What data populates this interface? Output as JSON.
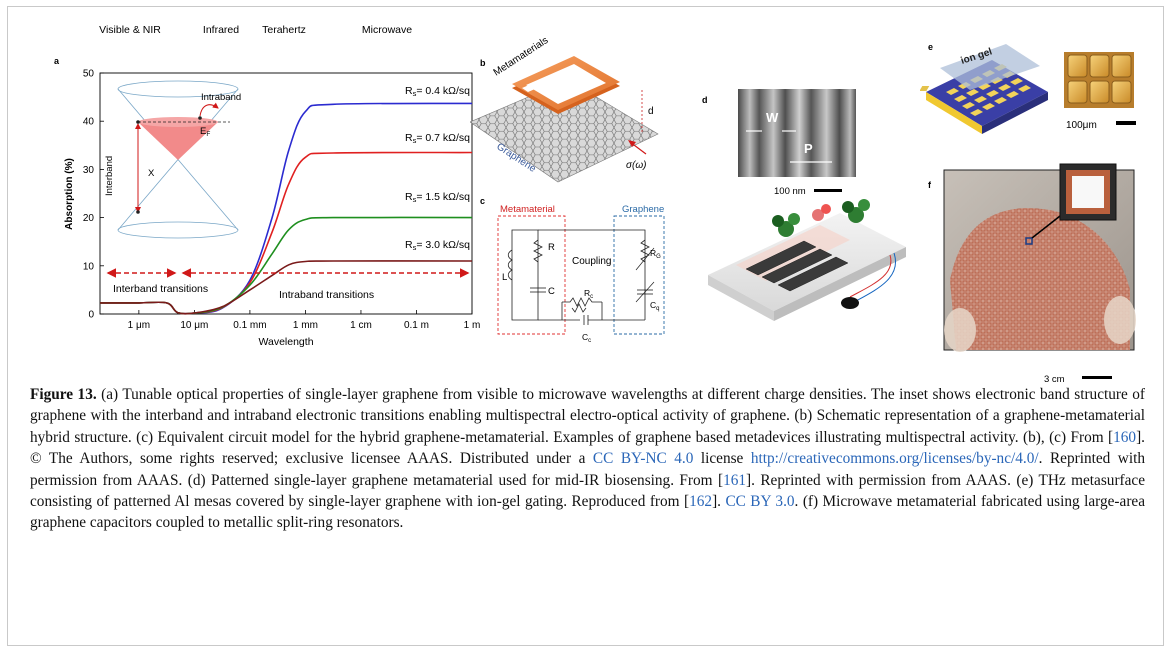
{
  "panel_a": {
    "label": "a",
    "regions": [
      "Visible & NIR",
      "Infrared",
      "Terahertz",
      "Microwave"
    ],
    "y_ticks": [
      "50",
      "40",
      "30",
      "20",
      "10",
      "0"
    ],
    "x_ticks": [
      "1 μm",
      "10 μm",
      "0.1 mm",
      "1 mm",
      "1 cm",
      "0.1 m",
      "1 m"
    ],
    "ylabel": "Absorption (%)",
    "xlabel": "Wavelength",
    "inset": {
      "interband": "Interband",
      "intraband": "Intraband",
      "ef": "E",
      "ef_sub": "F",
      "x": "X"
    },
    "interband_transitions": "Interband transitions",
    "intraband_transitions": "Intraband transitions",
    "curve_labels": [
      {
        "pre": "R",
        "sub": "s",
        "post": "= 0.4 kΩ/sq"
      },
      {
        "pre": "R",
        "sub": "s",
        "post": "= 0.7 kΩ/sq"
      },
      {
        "pre": "R",
        "sub": "s",
        "post": "= 1.5 kΩ/sq"
      },
      {
        "pre": "R",
        "sub": "s",
        "post": "= 3.0 kΩ/sq"
      }
    ]
  },
  "chart_data": {
    "type": "line",
    "xlabel": "Wavelength",
    "ylabel": "Absorption (%)",
    "ylim": [
      0,
      50
    ],
    "x_ticks": [
      "1 μm",
      "10 μm",
      "0.1 mm",
      "1 mm",
      "1 cm",
      "0.1 m",
      "1 m"
    ],
    "series": [
      {
        "name": "Rs= 0.4 kΩ/sq",
        "color": "#2b2bd0",
        "x_log_m": [
          -6.7,
          -6.0,
          -5.5,
          -5.3,
          -5.0,
          -4.5,
          -4.0,
          -3.6,
          -3.3,
          -3.0,
          -2.5,
          0.0
        ],
        "values": [
          2.3,
          2.3,
          2.3,
          0.3,
          0.2,
          1.2,
          7,
          20,
          34,
          42,
          43.5,
          43.7
        ]
      },
      {
        "name": "Rs= 0.7 kΩ/sq",
        "color": "#e02020",
        "x_log_m": [
          -6.7,
          -6.0,
          -5.5,
          -5.3,
          -5.0,
          -4.5,
          -4.0,
          -3.6,
          -3.3,
          -3.0,
          -2.5,
          0.0
        ],
        "values": [
          2.3,
          2.3,
          2.3,
          0.3,
          0.2,
          1.3,
          6.5,
          17,
          27,
          32.5,
          33.4,
          33.5
        ]
      },
      {
        "name": "Rs= 1.5 kΩ/sq",
        "color": "#1f8f1f",
        "x_log_m": [
          -6.7,
          -6.0,
          -5.5,
          -5.3,
          -5.0,
          -4.5,
          -4.0,
          -3.6,
          -3.3,
          -3.0,
          -2.5,
          0.0
        ],
        "values": [
          2.3,
          2.3,
          2.3,
          0.3,
          0.2,
          1.4,
          6,
          12.5,
          17.5,
          19.6,
          20,
          20
        ]
      },
      {
        "name": "Rs= 3.0 kΩ/sq",
        "color": "#7a1a1a",
        "x_log_m": [
          -6.7,
          -6.0,
          -5.5,
          -5.3,
          -5.0,
          -4.5,
          -4.0,
          -3.6,
          -3.3,
          -3.0,
          -2.5,
          0.0
        ],
        "values": [
          2.3,
          2.3,
          2.3,
          0.3,
          0.2,
          1.5,
          5,
          8,
          10.2,
          10.9,
          11,
          11
        ]
      }
    ]
  },
  "panel_b": {
    "label": "b",
    "metamaterials": "Metamaterials",
    "graphene": "Graphene",
    "d": "d",
    "sigma": "σ(ω)"
  },
  "panel_c": {
    "label": "c",
    "metamaterial": "Metamaterial",
    "graphene": "Graphene",
    "coupling": "Coupling",
    "l": "L",
    "r": "R",
    "c": "C",
    "rc": "R",
    "rc_sub": "c",
    "cc": "C",
    "cc_sub": "c",
    "rg": "R",
    "rg_sub": "G",
    "cq": "C",
    "cq_sub": "q",
    "metamaterial_color": "#e03030",
    "graphene_color": "#2a6aa6"
  },
  "panel_d": {
    "label": "d",
    "w": "W",
    "p": "P",
    "scale": "100 nm"
  },
  "panel_e": {
    "label": "e",
    "ion_gel": "ion gel",
    "scale": "100μm"
  },
  "panel_f": {
    "label": "f",
    "scale": "3 cm"
  },
  "caption": {
    "lead": "Figure 13.",
    "part1": " (a) Tunable optical properties of single-layer graphene from visible to microwave wavelengths at different charge densities. The inset shows electronic band structure of graphene with the interband and intraband electronic transitions enabling multispectral electro-optical activity of graphene. (b) Schematic representation of a graphene-metamaterial hybrid structure. (c) Equivalent circuit model for the hybrid graphene-metamaterial. Examples of graphene based metadevices illustrating multispectral activity. (b), (c) From [",
    "ref1": "160",
    "part2": "]. © The Authors, some rights reserved; exclusive licensee AAAS. Distributed under a ",
    "lic1": "CC BY-NC 4.0",
    "part3": " license ",
    "url1": "http://creativecommons.org/licenses/by-nc/4.0/",
    "part4": ". Reprinted with permission from AAAS. (d) Patterned single-layer graphene metamaterial used for mid-IR biosensing. From [",
    "ref2": "161",
    "part5": "]. Reprinted with permission from AAAS. (e) THz metasurface consisting of patterned Al mesas covered by single-layer graphene with ion-gel gating. Reproduced from [",
    "ref3": "162",
    "part6": "]. ",
    "lic2": "CC BY 3.0",
    "part7": ". (f) Microwave metamaterial fabricated using large-area graphene capacitors coupled to metallic split-ring resonators."
  }
}
